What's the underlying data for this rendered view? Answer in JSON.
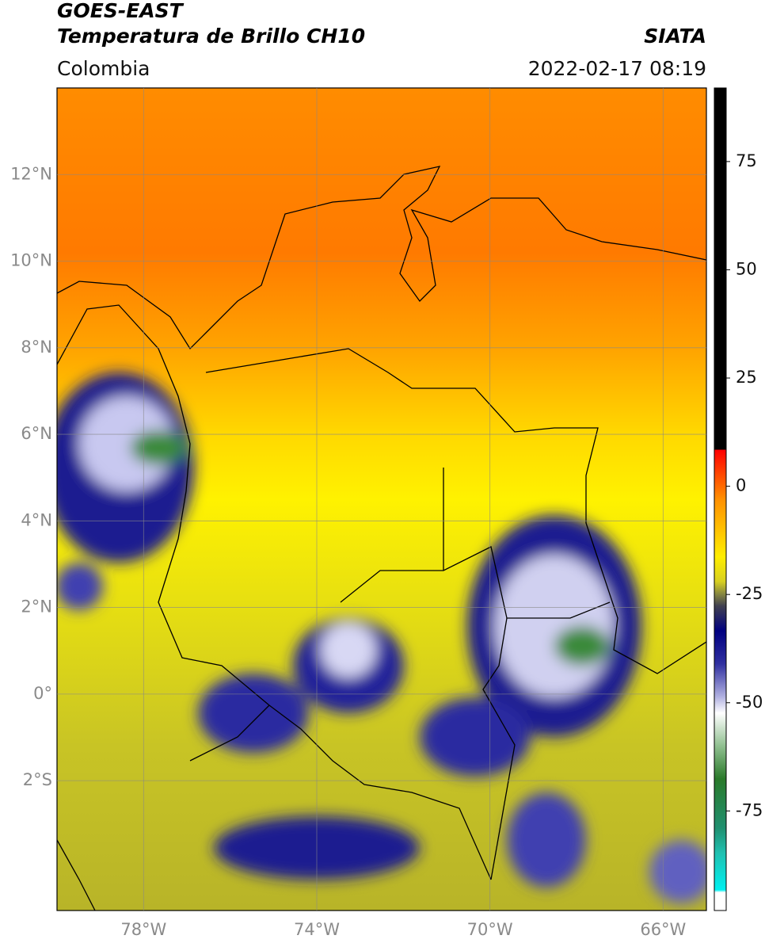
{
  "header": {
    "title": "GOES-EAST",
    "subtitle": "Temperatura de Brillo CH10",
    "source": "SIATA",
    "region": "Colombia",
    "datetime": "2022-02-17 08:19"
  },
  "map": {
    "xlim": [
      -80,
      -65
    ],
    "ylim": [
      -5,
      14
    ],
    "xticks": [
      {
        "value": -78,
        "label": "78°W"
      },
      {
        "value": -74,
        "label": "74°W"
      },
      {
        "value": -70,
        "label": "70°W"
      },
      {
        "value": -66,
        "label": "66°W"
      }
    ],
    "yticks": [
      {
        "value": 12,
        "label": "12°N"
      },
      {
        "value": 10,
        "label": "10°N"
      },
      {
        "value": 8,
        "label": "8°N"
      },
      {
        "value": 6,
        "label": "6°N"
      },
      {
        "value": 4,
        "label": "4°N"
      },
      {
        "value": 2,
        "label": "2°N"
      },
      {
        "value": 0,
        "label": "0°"
      },
      {
        "value": -2,
        "label": "2°S"
      }
    ],
    "grid": true
  },
  "colorbar": {
    "ylim": [
      -98,
      92
    ],
    "yticks": [
      75,
      50,
      25,
      0,
      -25,
      -50,
      -75
    ]
  }
}
